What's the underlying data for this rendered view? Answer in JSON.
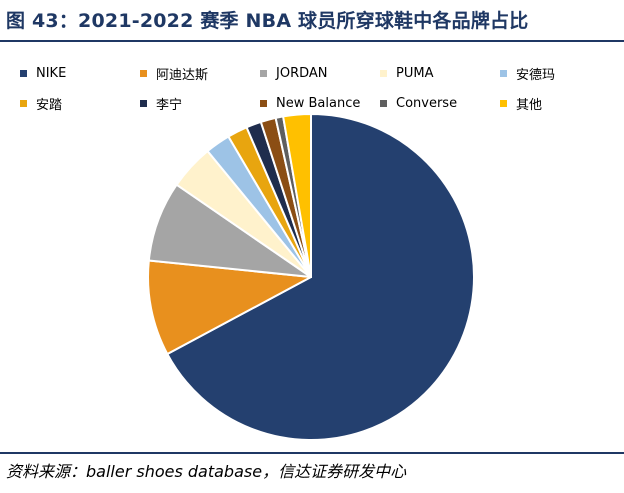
{
  "chart_data": {
    "type": "pie",
    "title": "图 43：2021-2022 赛季 NBA 球员所穿球鞋中各品牌占比",
    "legend_position": "top",
    "categories": [
      "NIKE",
      "阿迪达斯",
      "JORDAN",
      "PUMA",
      "安德玛",
      "安踏",
      "李宁",
      "New Balance",
      "Converse",
      "其他"
    ],
    "values": [
      67.5,
      9.5,
      8,
      4.5,
      2.5,
      2,
      1.5,
      1.5,
      0.75,
      2.75
    ],
    "colors": [
      "#24406f",
      "#e8901e",
      "#a5a5a5",
      "#fff2cc",
      "#9dc3e6",
      "#e8a50f",
      "#1f2d4d",
      "#8b4e14",
      "#5f5f5f",
      "#ffc000"
    ],
    "source": "资料来源：baller shoes database，信达证券研发中心"
  }
}
